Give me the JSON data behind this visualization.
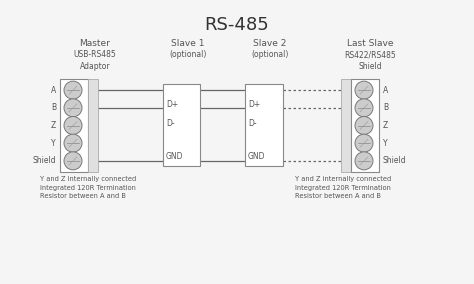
{
  "title": "RS-485",
  "bg_color": "#f5f5f5",
  "text_color": "#555555",
  "line_color": "#666666",
  "box_edge_color": "#888888",
  "master_label": "Master",
  "master_sub": "USB-RS485\nAdaptor",
  "slave1_label": "Slave 1",
  "slave1_sub": "(optional)",
  "slave2_label": "Slave 2",
  "slave2_sub": "(optional)",
  "last_slave_label": "Last Slave",
  "last_slave_sub": "RS422/RS485\nShield",
  "master_pins": [
    "A",
    "B",
    "Z",
    "Y",
    "Shield"
  ],
  "last_slave_pins": [
    "A",
    "B",
    "Z",
    "Y",
    "Shield"
  ],
  "note_left": "Y and Z internally connected\nIntegrated 120R Termination\nResistor between A and B",
  "note_right": "Y and Z internally connected\nIntegrated 120R Termination\nResistor between A and B"
}
